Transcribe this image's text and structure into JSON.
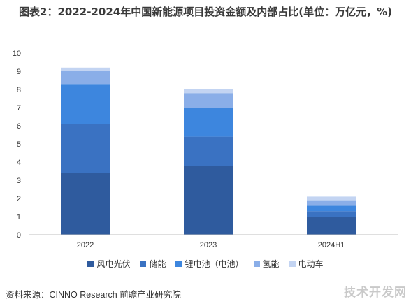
{
  "title": "图表2：2022-2024年中国新能源项目投资金额及内部占比(单位：万亿元，%)",
  "source": "资料来源：CINNO Research 前瞻产业研究院",
  "watermark": "技术开发网",
  "colors": {
    "风电光伏": "#2f5b9e",
    "储能": "#3a72c2",
    "锂电池（电池）": "#3d86de",
    "氢能": "#8aaee8",
    "电动车": "#c3d4f2"
  },
  "chart_data": {
    "type": "bar",
    "stacked": true,
    "categories": [
      "2022",
      "2023",
      "2024H1"
    ],
    "series": [
      {
        "name": "风电光伏",
        "values": [
          3.4,
          3.8,
          1.0
        ]
      },
      {
        "name": "储能",
        "values": [
          2.7,
          1.6,
          0.3
        ]
      },
      {
        "name": "锂电池（电池）",
        "values": [
          2.2,
          1.6,
          0.3
        ]
      },
      {
        "name": "氢能",
        "values": [
          0.7,
          0.8,
          0.3
        ]
      },
      {
        "name": "电动车",
        "values": [
          0.2,
          0.2,
          0.2
        ]
      }
    ],
    "ylim": [
      0,
      10
    ],
    "yticks": [
      "0",
      "1",
      "2",
      "3",
      "4",
      "5",
      "6",
      "7",
      "8",
      "9",
      "10"
    ],
    "grid": false,
    "legend_position": "bottom"
  }
}
